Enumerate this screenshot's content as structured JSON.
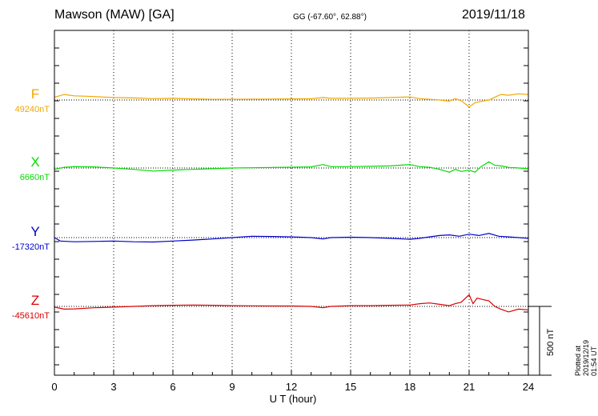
{
  "header": {
    "station": "Mawson (MAW)  [GA]",
    "coords": "GG (-67.60°,  62.88°)",
    "date": "2019/11/18"
  },
  "footer": {
    "plotted": "Plotted at 2019/12/19 01:54  UT",
    "scale": "500 nT"
  },
  "chart_data": {
    "type": "line",
    "title": "Mawson (MAW)  [GA]",
    "xlabel": "U T (hour)",
    "ylabel": "",
    "xlim": [
      0,
      24
    ],
    "xticks": [
      0,
      3,
      6,
      9,
      12,
      15,
      18,
      21,
      24
    ],
    "scale_bar_nT": 500,
    "grid": "dotted vertical lines every 3 hours",
    "series": [
      {
        "name": "F",
        "baseline_label": "49240nT",
        "baseline_nT": 49240,
        "color": "#f0a800",
        "points": [
          [
            0,
            20
          ],
          [
            0.5,
            40
          ],
          [
            1,
            30
          ],
          [
            1.5,
            28
          ],
          [
            2,
            25
          ],
          [
            3,
            18
          ],
          [
            4,
            15
          ],
          [
            5,
            10
          ],
          [
            6,
            12
          ],
          [
            7,
            8
          ],
          [
            8,
            5
          ],
          [
            9,
            5
          ],
          [
            10,
            6
          ],
          [
            11,
            7
          ],
          [
            12,
            8
          ],
          [
            13,
            9
          ],
          [
            13.6,
            18
          ],
          [
            14,
            12
          ],
          [
            15,
            12
          ],
          [
            16,
            14
          ],
          [
            17,
            18
          ],
          [
            18,
            22
          ],
          [
            18.5,
            10
          ],
          [
            19,
            5
          ],
          [
            19.5,
            0
          ],
          [
            20,
            -8
          ],
          [
            20.3,
            10
          ],
          [
            20.6,
            -5
          ],
          [
            21,
            -50
          ],
          [
            21.3,
            -20
          ],
          [
            21.6,
            -10
          ],
          [
            22,
            0
          ],
          [
            22.3,
            20
          ],
          [
            22.6,
            40
          ],
          [
            23,
            35
          ],
          [
            23.5,
            45
          ],
          [
            24,
            40
          ]
        ]
      },
      {
        "name": "X",
        "baseline_label": "6660nT",
        "baseline_nT": 6660,
        "color": "#00dd00",
        "points": [
          [
            0,
            -10
          ],
          [
            0.5,
            5
          ],
          [
            1,
            10
          ],
          [
            2,
            8
          ],
          [
            3,
            0
          ],
          [
            4,
            -10
          ],
          [
            5,
            -22
          ],
          [
            6,
            -15
          ],
          [
            7,
            -10
          ],
          [
            8,
            -5
          ],
          [
            9,
            0
          ],
          [
            10,
            2
          ],
          [
            11,
            4
          ],
          [
            12,
            6
          ],
          [
            13,
            8
          ],
          [
            13.6,
            25
          ],
          [
            14,
            10
          ],
          [
            15,
            10
          ],
          [
            16,
            12
          ],
          [
            17,
            15
          ],
          [
            18,
            25
          ],
          [
            18.5,
            10
          ],
          [
            19,
            5
          ],
          [
            19.5,
            -10
          ],
          [
            20,
            -30
          ],
          [
            20.3,
            -10
          ],
          [
            20.6,
            -25
          ],
          [
            21,
            -15
          ],
          [
            21.3,
            -30
          ],
          [
            21.6,
            10
          ],
          [
            22,
            45
          ],
          [
            22.3,
            20
          ],
          [
            22.6,
            15
          ],
          [
            23,
            5
          ],
          [
            24,
            -5
          ]
        ]
      },
      {
        "name": "Y",
        "baseline_label": "-17320nT",
        "baseline_nT": -17320,
        "color": "#0000cc",
        "points": [
          [
            0,
            0
          ],
          [
            0.3,
            -25
          ],
          [
            1,
            -30
          ],
          [
            2,
            -28
          ],
          [
            3,
            -25
          ],
          [
            4,
            -30
          ],
          [
            5,
            -32
          ],
          [
            6,
            -25
          ],
          [
            7,
            -18
          ],
          [
            8,
            -10
          ],
          [
            9,
            0
          ],
          [
            10,
            10
          ],
          [
            11,
            8
          ],
          [
            12,
            5
          ],
          [
            13,
            0
          ],
          [
            13.6,
            -10
          ],
          [
            14,
            0
          ],
          [
            15,
            3
          ],
          [
            16,
            0
          ],
          [
            17,
            -5
          ],
          [
            18,
            -12
          ],
          [
            18.5,
            -5
          ],
          [
            19,
            5
          ],
          [
            19.5,
            15
          ],
          [
            20,
            20
          ],
          [
            20.5,
            10
          ],
          [
            21,
            25
          ],
          [
            21.5,
            15
          ],
          [
            22,
            30
          ],
          [
            22.5,
            10
          ],
          [
            23,
            5
          ],
          [
            23.5,
            0
          ],
          [
            24,
            -5
          ]
        ]
      },
      {
        "name": "Z",
        "baseline_label": "-45610nT",
        "baseline_nT": -45610,
        "color": "#dd0000",
        "points": [
          [
            0,
            -5
          ],
          [
            0.5,
            -20
          ],
          [
            1,
            -18
          ],
          [
            2,
            -10
          ],
          [
            3,
            -5
          ],
          [
            4,
            0
          ],
          [
            5,
            5
          ],
          [
            6,
            8
          ],
          [
            7,
            10
          ],
          [
            8,
            8
          ],
          [
            9,
            5
          ],
          [
            10,
            4
          ],
          [
            11,
            3
          ],
          [
            12,
            3
          ],
          [
            13,
            0
          ],
          [
            13.6,
            -10
          ],
          [
            14,
            0
          ],
          [
            15,
            5
          ],
          [
            16,
            5
          ],
          [
            17,
            8
          ],
          [
            18,
            10
          ],
          [
            18.5,
            20
          ],
          [
            19,
            25
          ],
          [
            19.5,
            15
          ],
          [
            20,
            5
          ],
          [
            20.3,
            20
          ],
          [
            20.6,
            30
          ],
          [
            21,
            85
          ],
          [
            21.2,
            20
          ],
          [
            21.4,
            60
          ],
          [
            21.7,
            50
          ],
          [
            22,
            40
          ],
          [
            22.3,
            0
          ],
          [
            22.6,
            -20
          ],
          [
            23,
            -40
          ],
          [
            23.5,
            -20
          ],
          [
            24,
            -25
          ]
        ]
      }
    ]
  }
}
